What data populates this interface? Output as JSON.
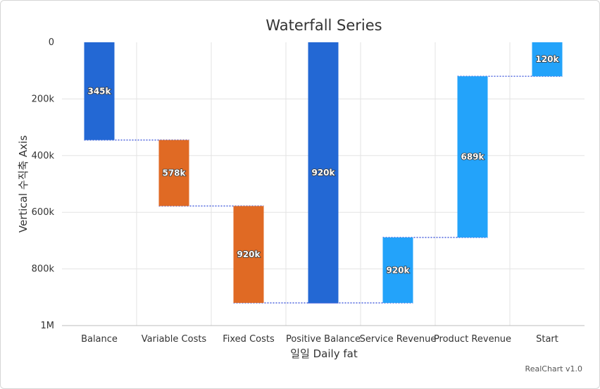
{
  "chart_data": {
    "type": "waterfall",
    "title": "Waterfall Series",
    "xlabel": "일일 Daily fat",
    "ylabel": "Vertical 수직축 Axis",
    "y_axis_reversed": true,
    "ylim": [
      0,
      1000000
    ],
    "y_ticks": [
      "0",
      "200k",
      "400k",
      "600k",
      "800k",
      "1M"
    ],
    "grid": true,
    "categories": [
      "Balance",
      "Variable Costs",
      "Fixed Costs",
      "Positive Balance",
      "Service Revenue",
      "Product Revenue",
      "Start"
    ],
    "bars": [
      {
        "category": "Balance",
        "start": 0,
        "end": 345000,
        "label": "345k",
        "color": "#2368d4"
      },
      {
        "category": "Variable Costs",
        "start": 345000,
        "end": 578000,
        "label": "578k",
        "color": "#e06a24"
      },
      {
        "category": "Fixed Costs",
        "start": 578000,
        "end": 920000,
        "label": "920k",
        "color": "#e06a24"
      },
      {
        "category": "Positive Balance",
        "start": 0,
        "end": 920000,
        "label": "920k",
        "color": "#2368d4"
      },
      {
        "category": "Service Revenue",
        "start": 689000,
        "end": 920000,
        "label": "920k",
        "color": "#23a3fa"
      },
      {
        "category": "Product Revenue",
        "start": 120000,
        "end": 689000,
        "label": "689k",
        "color": "#23a3fa"
      },
      {
        "category": "Start",
        "start": 0,
        "end": 120000,
        "label": "120k",
        "color": "#23a3fa"
      }
    ],
    "credit": "RealChart v1.0"
  }
}
